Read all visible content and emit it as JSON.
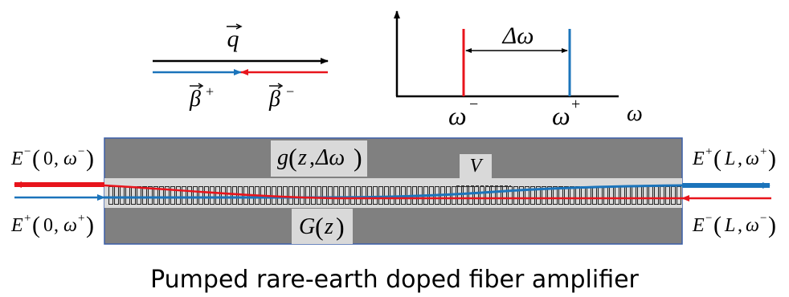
{
  "wavevector": {
    "q": "q",
    "beta": "β",
    "plus": "+",
    "minus": "−"
  },
  "spectrum": {
    "omega": "ω",
    "omega_minus_sup": "−",
    "omega_plus_sup": "+",
    "delta_omega": "Δω",
    "colors": {
      "omega_minus": "#e8141c",
      "omega_plus": "#1b74bb"
    }
  },
  "fiber": {
    "gain_label": {
      "g": "g",
      "args_z": "z",
      "args_sep": ",",
      "args_delta": "Δω"
    },
    "G_label": {
      "G": "G",
      "arg": "z"
    },
    "V_label": "V",
    "field_left_top": {
      "E": "E",
      "sup": "−",
      "arg0": "0",
      "sep": ",",
      "omega": "ω",
      "omega_sup": "−"
    },
    "field_left_bottom": {
      "E": "E",
      "sup": "+",
      "arg0": "0",
      "sep": ",",
      "omega": "ω",
      "omega_sup": "+"
    },
    "field_right_top": {
      "E": "E",
      "sup": "+",
      "arg0": "L",
      "sep": ",",
      "omega": "ω",
      "omega_sup": "+"
    },
    "field_right_bottom": {
      "E": "E",
      "sup": "−",
      "arg0": "L",
      "sep": ",",
      "omega": "ω",
      "omega_sup": "−"
    },
    "colors": {
      "cladding": "#808080",
      "core": "#d9d9d9",
      "forward": "#1b74bb",
      "backward": "#e8141c"
    }
  },
  "caption": "Pumped rare-earth doped fiber amplifier"
}
